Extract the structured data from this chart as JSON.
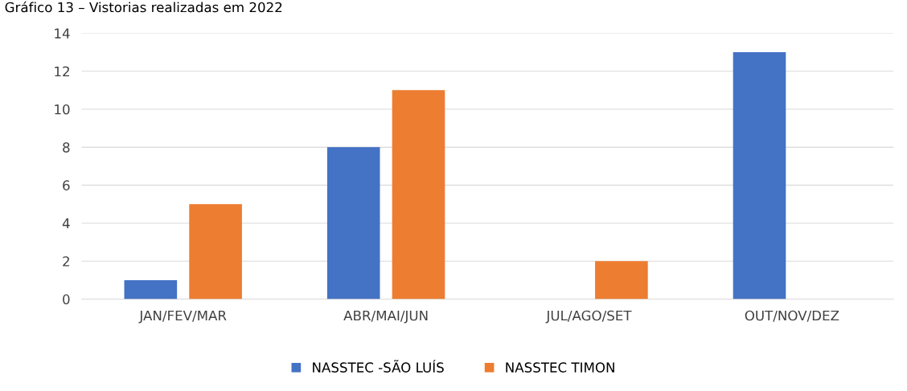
{
  "chart_data": {
    "type": "bar",
    "title": "Gráfico 13 – Vistorias realizadas em 2022",
    "categories": [
      "JAN/FEV/MAR",
      "ABR/MAI/JUN",
      "JUL/AGO/SET",
      "OUT/NOV/DEZ"
    ],
    "series": [
      {
        "name": "NASSTEC -SÃO LUÍS",
        "color": "#4472c4",
        "values": [
          1,
          8,
          0,
          13
        ]
      },
      {
        "name": "NASSTEC TIMON",
        "color": "#ed7d31",
        "values": [
          5,
          11,
          2,
          0
        ]
      }
    ],
    "ylim": [
      0,
      14
    ],
    "yticks": [
      0,
      2,
      4,
      6,
      8,
      10,
      12,
      14
    ],
    "grid": "y",
    "legend": "bottom"
  }
}
